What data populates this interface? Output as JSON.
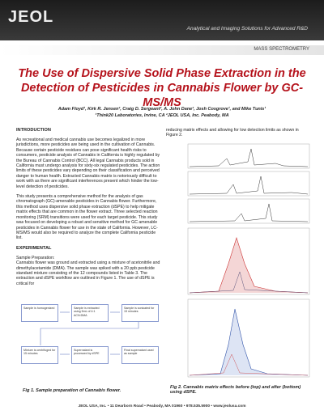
{
  "header": {
    "logo": "JEOL",
    "tagline": "Analytical and Imaging Solutions for Advanced R&D",
    "section": "MASS SPECTROMETRY"
  },
  "title": "The Use of Dispersive Solid Phase Extraction in the Detection of Pesticides in Cannabis Flower by GC-MS/MS",
  "authors": "Adam Floyd¹, Kirk R. Jensen², Craig D. Sergeant², A. John Dane², Josh Cosgrove¹, and Mike Tunis¹",
  "affiliation": "¹Think20 Laboratories, Irvine, CA  ²JEOL USA, Inc. Peabody, MA",
  "introduction": {
    "heading": "INTRODUCTION",
    "paragraphs": [
      "As recreational and medical cannabis use becomes legalized in more jurisdictions, more pesticides are being used in the cultivation of Cannabis. Because certain pesticide residues can pose significant health risks to consumers, pesticide analysis of Cannabis in California is highly regulated by the Bureau of Cannabis Control (BCC). All legal Cannabis products sold in California must undergo analysis for sixty-six regulated pesticides. The action limits of these pesticides vary depending on their classification and perceived danger to human health. Extracted Cannabis matrix is notoriously difficult to work with as there are significant interferences present which hinder the low-level detection of pesticides.",
      "This study presents a comprehensive method for the analysis of gas chromatograph (GC)-amenable pesticides in Cannabis flower. Furthermore, this method uses dispersive solid phase extraction (dSPE) to help mitigate matrix effects that are common in the flower extract. Three selected reaction monitoring (SRM) transitions were used for each target pesticide. This study was focused on developing a robust and sensitive method for GC amenable pesticides in Cannabis flower for use in the state of California. However, LC-MS/MS would also be required to analyze the complete California pesticide list."
    ]
  },
  "experimental": {
    "heading": "EXPERIMENTAL",
    "subheading": "Sample Preparation:",
    "paragraph": "Cannabis flower was ground and extracted using a mixture of acetonitrile and dimethylacetamide (DMA). The sample was spiked with a 20 ppb pesticide standard mixture consisting of the 12 compounds listed in Table 3. The extraction and dSPE workflow are outlined in Figure 1. The use of dSPE is critical for",
    "continued": "reducing matrix effects and allowing for low detection limits as shown in Figure 2."
  },
  "figure1": {
    "boxes": [
      "Sample is homogenized",
      "Sample is extracted using 5mL of 4:1 ACN:DMA",
      "Sample is sonicated for 15 minutes",
      "Mixture is centrifuged for 15 minutes",
      "Supernatant is processed by dSPE",
      "Final supernatant used as sample"
    ],
    "caption": "Fig 1. Sample preparation of Cannabis flower."
  },
  "figure2": {
    "caption": "Fig 2. Cannabis matrix effects before (top) and after (bottom) using dSPE."
  },
  "footer": "JEOL USA, Inc. • 11 Dearborn Road • Peabody, MA 01960 • 978.535.5900 • www.jeolusa.com"
}
